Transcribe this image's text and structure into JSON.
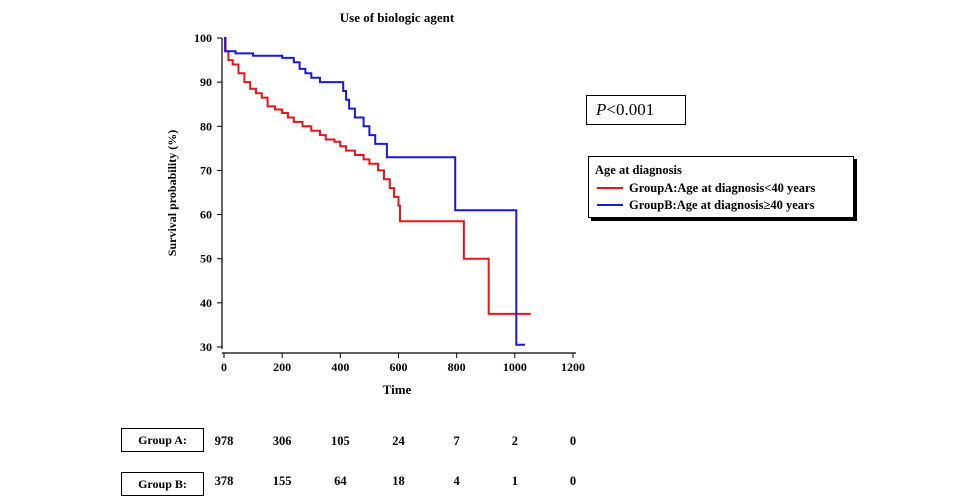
{
  "chart_data": {
    "type": "line",
    "title": "Use of biologic agent",
    "xlabel": "Time",
    "ylabel": "Survival probability (%)",
    "xlim": [
      0,
      1200
    ],
    "ylim": [
      30,
      100
    ],
    "x_ticks": [
      "0",
      "200",
      "400",
      "600",
      "800",
      "1000",
      "1200"
    ],
    "y_ticks": [
      "30",
      "40",
      "50",
      "60",
      "70",
      "80",
      "90",
      "100"
    ],
    "legend_title": "Age at diagnosis",
    "legend_position": "right",
    "p_value": {
      "label": "P",
      "text": "<0.001"
    },
    "series": [
      {
        "name": "GroupA:Age at diagnosis<40 years",
        "color": "#e8141c",
        "points": [
          [
            0,
            100
          ],
          [
            3,
            97
          ],
          [
            15,
            95
          ],
          [
            30,
            94
          ],
          [
            50,
            92
          ],
          [
            70,
            90
          ],
          [
            90,
            88.5
          ],
          [
            110,
            87.5
          ],
          [
            130,
            86.5
          ],
          [
            150,
            84.5
          ],
          [
            175,
            83.8
          ],
          [
            200,
            83
          ],
          [
            220,
            82
          ],
          [
            240,
            81
          ],
          [
            270,
            80
          ],
          [
            300,
            79
          ],
          [
            330,
            78
          ],
          [
            350,
            77
          ],
          [
            380,
            76.5
          ],
          [
            400,
            75.5
          ],
          [
            420,
            74.5
          ],
          [
            450,
            73.5
          ],
          [
            480,
            72.5
          ],
          [
            500,
            71.5
          ],
          [
            530,
            70
          ],
          [
            550,
            68
          ],
          [
            570,
            66
          ],
          [
            585,
            64
          ],
          [
            600,
            62
          ],
          [
            605,
            58.5
          ],
          [
            820,
            58.5
          ],
          [
            825,
            50
          ],
          [
            905,
            50
          ],
          [
            910,
            37.5
          ],
          [
            1055,
            37.5
          ]
        ]
      },
      {
        "name": "GroupB:Age at diagnosis≥40 years",
        "color": "#1a1ad6",
        "points": [
          [
            0,
            100
          ],
          [
            5,
            97
          ],
          [
            40,
            96.5
          ],
          [
            100,
            96
          ],
          [
            150,
            96
          ],
          [
            200,
            95.5
          ],
          [
            240,
            94.5
          ],
          [
            260,
            93
          ],
          [
            280,
            92
          ],
          [
            300,
            91
          ],
          [
            330,
            90
          ],
          [
            370,
            90
          ],
          [
            390,
            90
          ],
          [
            410,
            88
          ],
          [
            420,
            86
          ],
          [
            430,
            84
          ],
          [
            450,
            82
          ],
          [
            480,
            80
          ],
          [
            500,
            78
          ],
          [
            520,
            76
          ],
          [
            540,
            76
          ],
          [
            560,
            73
          ],
          [
            790,
            73
          ],
          [
            795,
            61
          ],
          [
            1000,
            61
          ],
          [
            1005,
            30.5
          ],
          [
            1035,
            30.5
          ]
        ]
      }
    ]
  },
  "risk_table": {
    "times": [
      0,
      200,
      400,
      600,
      800,
      1000,
      1200
    ],
    "rows": [
      {
        "label": "Group  A:",
        "values": [
          "978",
          "306",
          "105",
          "24",
          "7",
          "2",
          "0"
        ]
      },
      {
        "label": "Group  B:",
        "values": [
          "378",
          "155",
          "64",
          "18",
          "4",
          "1",
          "0"
        ]
      }
    ]
  }
}
